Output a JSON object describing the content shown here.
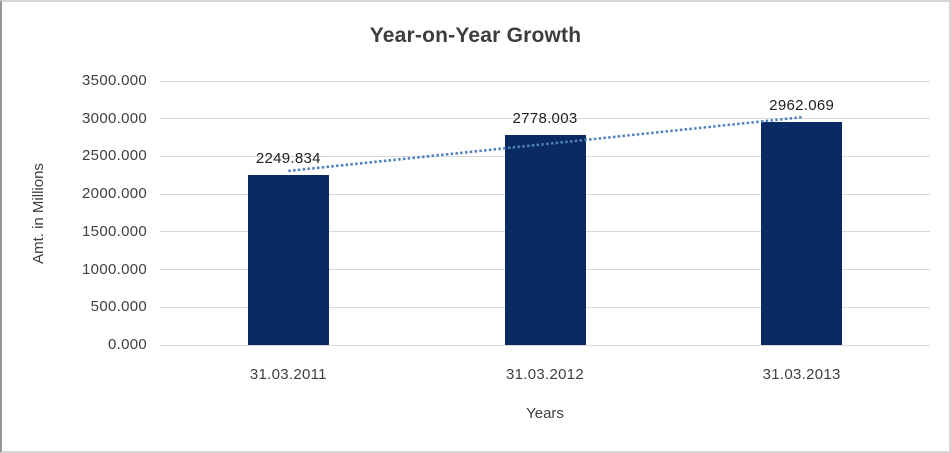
{
  "chart_data": {
    "type": "bar",
    "title": "Year-on-Year Growth",
    "xlabel": "Years",
    "ylabel": "Amt. in Millions",
    "categories": [
      "31.03.2011",
      "31.03.2012",
      "31.03.2013"
    ],
    "values": [
      2249.834,
      2778.003,
      2962.069
    ],
    "data_labels": [
      "2249.834",
      "2778.003",
      "2962.069"
    ],
    "ylim": [
      0,
      3500
    ],
    "ytick_step": 500,
    "ytick_labels": [
      "0.000",
      "500.000",
      "1000.000",
      "1500.000",
      "2000.000",
      "2500.000",
      "3000.000",
      "3500.000"
    ],
    "grid": true,
    "legend": "none",
    "trendline": {
      "present": true,
      "type": "linear",
      "style": "dotted"
    },
    "colors": {
      "bar": "#0a2a64",
      "trendline": "#4f81bd",
      "gridline": "#d9d9d9",
      "axis_text": "#404040",
      "data_label_text": "#212121",
      "title_text": "#3d3d3d",
      "background": "#ffffff"
    }
  }
}
